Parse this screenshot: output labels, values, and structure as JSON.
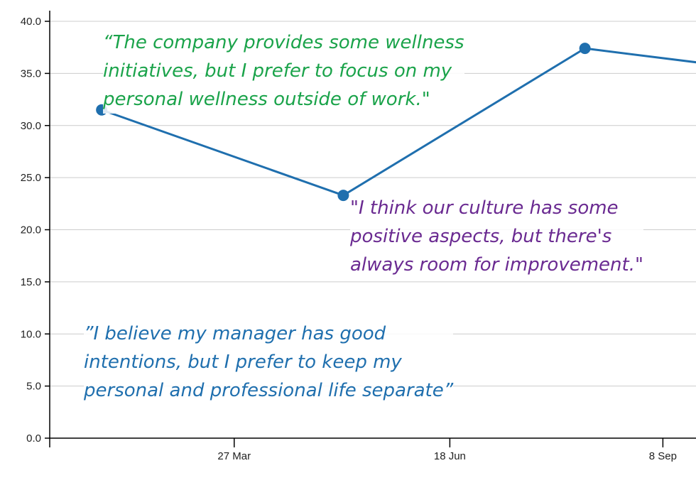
{
  "chart_data": {
    "type": "line",
    "x": [
      "2023-02-04",
      "2023-05-08",
      "2023-08-09",
      "2023-10-09"
    ],
    "y": [
      31.5,
      23.3,
      37.4,
      35.5
    ],
    "xlim": [
      "2023-01-15",
      "2023-09-12"
    ],
    "xticks": [
      {
        "date": "2023-03-27",
        "label": "27 Mar"
      },
      {
        "date": "2023-06-18",
        "label": "18 Jun"
      },
      {
        "date": "2023-09-08",
        "label": "8 Sep"
      }
    ],
    "ylim": [
      0,
      40
    ],
    "yticks": [
      "0.0",
      "5.0",
      "10.0",
      "15.0",
      "20.0",
      "25.0",
      "30.0",
      "35.0",
      "40.0"
    ],
    "grid": "horizontal",
    "line_color": "#1f6fae",
    "title": "",
    "xlabel": "",
    "ylabel": ""
  },
  "annotations": [
    {
      "text": "“The company provides some wellness\ninitiatives, but I prefer to focus on my\npersonal wellness outside of work.\"",
      "color": "#1aa34a"
    },
    {
      "text": "\"I think our culture has some\npositive aspects, but there's\nalways room for improvement.\"",
      "color": "#6a2a91"
    },
    {
      "text": "”I believe my manager has good\nintentions, but I prefer to keep my\npersonal and professional life separate”",
      "color": "#1f6fae"
    }
  ]
}
